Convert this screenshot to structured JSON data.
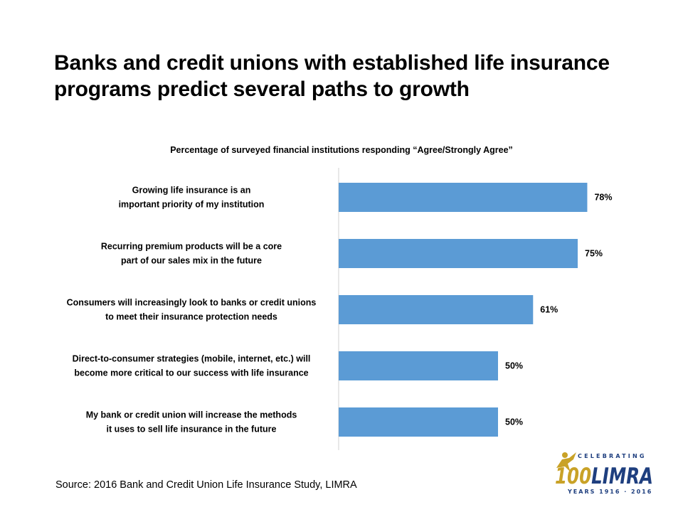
{
  "slide": {
    "title": "Banks and credit unions with established life insurance programs predict several paths to growth",
    "source": "Source: 2016 Bank and Credit Union Life Insurance  Study, LIMRA"
  },
  "logo": {
    "top_text": "CELEBRATING",
    "main_text": "100LIMRA",
    "bottom_text": "YEARS 1916 · 2016",
    "colors": {
      "gold": "#C9A227",
      "navy": "#1F3F7F"
    }
  },
  "chart_data": {
    "type": "bar",
    "orientation": "horizontal",
    "subtitle": "Percentage of surveyed financial institutions responding “Agree/Strongly Agree”",
    "categories": [
      [
        "Growing life insurance is an",
        "important priority of my institution"
      ],
      [
        "Recurring premium products will be a core",
        "part of our sales mix in the future"
      ],
      [
        "Consumers will increasingly look to banks or credit unions",
        "to meet their insurance protection needs"
      ],
      [
        "Direct-to-consumer strategies (mobile, internet, etc.) will",
        "become more critical to our success with life insurance"
      ],
      [
        "My bank or credit union will increase the methods",
        "it uses to sell life insurance in the future"
      ]
    ],
    "values": [
      78,
      75,
      61,
      50,
      50
    ],
    "value_labels": [
      "78%",
      "75%",
      "61%",
      "50%",
      "50%"
    ],
    "xlim": [
      0,
      100
    ],
    "bar_color": "#5B9BD5",
    "grid": false,
    "legend": "none"
  }
}
